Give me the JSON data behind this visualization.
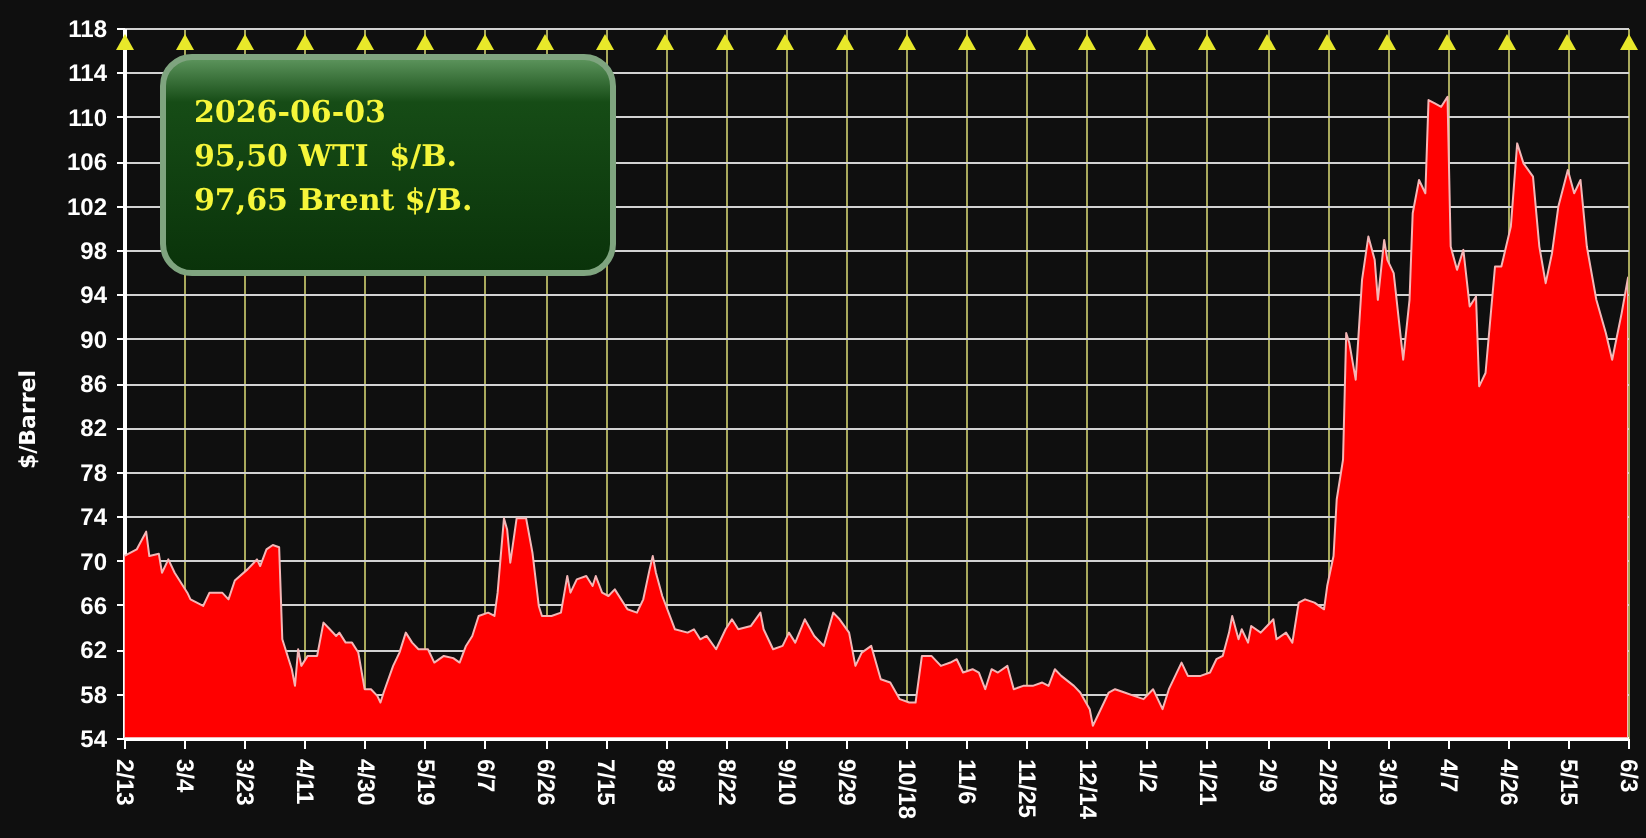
{
  "chart_data": {
    "type": "area",
    "ylabel": "$/Barrel",
    "annotations": [
      "2026-06-03",
      "95,50 WTI  $/B.",
      "97,65 Brent $/B."
    ],
    "x": [
      "2025-02-13",
      "2025-02-17",
      "2025-02-20",
      "2025-02-21",
      "2025-02-24",
      "2025-02-25",
      "2025-02-27",
      "2025-03-01",
      "2025-03-05",
      "2025-03-06",
      "2025-03-08",
      "2025-03-10",
      "2025-03-12",
      "2025-03-16",
      "2025-03-18",
      "2025-03-20",
      "2025-03-24",
      "2025-03-27",
      "2025-03-28",
      "2025-03-30",
      "2025-04-01",
      "2025-04-03",
      "2025-04-04",
      "2025-04-05",
      "2025-04-07",
      "2025-04-08",
      "2025-04-09",
      "2025-04-10",
      "2025-04-12",
      "2025-04-15",
      "2025-04-17",
      "2025-04-19",
      "2025-04-21",
      "2025-04-22",
      "2025-04-24",
      "2025-04-26",
      "2025-04-28",
      "2025-04-30",
      "2025-05-02",
      "2025-05-04",
      "2025-05-05",
      "2025-05-06",
      "2025-05-09",
      "2025-05-11",
      "2025-05-13",
      "2025-05-15",
      "2025-05-17",
      "2025-05-20",
      "2025-05-22",
      "2025-05-25",
      "2025-05-28",
      "2025-05-30",
      "2025-06-01",
      "2025-06-03",
      "2025-06-05",
      "2025-06-08",
      "2025-06-10",
      "2025-06-11",
      "2025-06-13",
      "2025-06-14",
      "2025-06-15",
      "2025-06-17",
      "2025-06-20",
      "2025-06-22",
      "2025-06-24",
      "2025-06-25",
      "2025-06-28",
      "2025-07-01",
      "2025-07-03",
      "2025-07-04",
      "2025-07-06",
      "2025-07-09",
      "2025-07-11",
      "2025-07-12",
      "2025-07-14",
      "2025-07-16",
      "2025-07-18",
      "2025-07-22",
      "2025-07-25",
      "2025-07-27",
      "2025-07-29",
      "2025-07-30",
      "2025-07-31",
      "2025-08-02",
      "2025-08-04",
      "2025-08-06",
      "2025-08-10",
      "2025-08-12",
      "2025-08-14",
      "2025-08-16",
      "2025-08-19",
      "2025-08-22",
      "2025-08-24",
      "2025-08-26",
      "2025-08-30",
      "2025-09-02",
      "2025-09-03",
      "2025-09-06",
      "2025-09-09",
      "2025-09-11",
      "2025-09-13",
      "2025-09-16",
      "2025-09-19",
      "2025-09-22",
      "2025-09-25",
      "2025-09-27",
      "2025-09-30",
      "2025-10-02",
      "2025-10-04",
      "2025-10-07",
      "2025-10-10",
      "2025-10-13",
      "2025-10-16",
      "2025-10-19",
      "2025-10-21",
      "2025-10-22",
      "2025-10-23",
      "2025-10-26",
      "2025-10-29",
      "2025-11-01",
      "2025-11-03",
      "2025-11-05",
      "2025-11-08",
      "2025-11-10",
      "2025-11-12",
      "2025-11-14",
      "2025-11-16",
      "2025-11-19",
      "2025-11-21",
      "2025-11-24",
      "2025-11-27",
      "2025-11-30",
      "2025-12-02",
      "2025-12-04",
      "2025-12-06",
      "2025-12-10",
      "2025-12-12",
      "2025-12-15",
      "2025-12-16",
      "2025-12-18",
      "2025-12-21",
      "2025-12-23",
      "2025-12-26",
      "2025-12-29",
      "2026-01-01",
      "2026-01-04",
      "2026-01-07",
      "2026-01-09",
      "2026-01-11",
      "2026-01-13",
      "2026-01-15",
      "2026-01-19",
      "2026-01-22",
      "2026-01-24",
      "2026-01-26",
      "2026-01-28",
      "2026-01-29",
      "2026-01-31",
      "2026-02-01",
      "2026-02-03",
      "2026-02-04",
      "2026-02-07",
      "2026-02-09",
      "2026-02-11",
      "2026-02-12",
      "2026-02-15",
      "2026-02-17",
      "2026-02-19",
      "2026-02-21",
      "2026-02-24",
      "2026-02-27",
      "2026-02-28",
      "2026-03-02",
      "2026-03-03",
      "2026-03-05",
      "2026-03-06",
      "2026-03-07",
      "2026-03-09",
      "2026-03-11",
      "2026-03-13",
      "2026-03-15",
      "2026-03-16",
      "2026-03-18",
      "2026-03-19",
      "2026-03-21",
      "2026-03-24",
      "2026-03-26",
      "2026-03-27",
      "2026-03-29",
      "2026-03-31",
      "2026-04-01",
      "2026-04-03",
      "2026-04-05",
      "2026-04-07",
      "2026-04-08",
      "2026-04-10",
      "2026-04-12",
      "2026-04-14",
      "2026-04-16",
      "2026-04-17",
      "2026-04-19",
      "2026-04-22",
      "2026-04-24",
      "2026-04-27",
      "2026-04-29",
      "2026-05-01",
      "2026-05-04",
      "2026-05-06",
      "2026-05-08",
      "2026-05-10",
      "2026-05-12",
      "2026-05-15",
      "2026-05-17",
      "2026-05-19",
      "2026-05-21",
      "2026-05-24",
      "2026-05-27",
      "2026-05-29",
      "2026-06-01",
      "2026-06-03"
    ],
    "series": [
      {
        "color": "#ff0000",
        "values": [
          70.4,
          71.0,
          72.6,
          70.4,
          70.6,
          68.9,
          70.1,
          68.9,
          67.1,
          66.5,
          66.2,
          65.9,
          67.1,
          67.1,
          66.5,
          68.2,
          69.2,
          70.1,
          69.5,
          71.0,
          71.4,
          71.2,
          62.9,
          62.0,
          60.2,
          58.7,
          62.0,
          60.5,
          61.4,
          61.4,
          64.4,
          63.8,
          63.2,
          63.5,
          62.6,
          62.6,
          61.7,
          58.4,
          58.4,
          57.8,
          57.2,
          58.1,
          60.5,
          61.7,
          63.5,
          62.6,
          62.0,
          62.0,
          60.8,
          61.4,
          61.2,
          60.8,
          62.3,
          63.2,
          65.0,
          65.3,
          65.0,
          67.1,
          73.8,
          72.8,
          69.8,
          73.8,
          73.8,
          70.7,
          65.9,
          65.0,
          65.0,
          65.3,
          68.6,
          67.1,
          68.3,
          68.6,
          67.7,
          68.6,
          67.1,
          66.8,
          67.4,
          65.6,
          65.3,
          66.5,
          69.2,
          70.4,
          68.9,
          66.8,
          65.3,
          63.8,
          63.5,
          63.8,
          62.9,
          63.2,
          62.0,
          63.8,
          64.7,
          63.8,
          64.1,
          65.3,
          63.8,
          62.0,
          62.3,
          63.5,
          62.6,
          64.7,
          63.2,
          62.3,
          65.3,
          64.7,
          63.5,
          60.5,
          61.7,
          62.3,
          59.3,
          59.0,
          57.5,
          57.2,
          57.2,
          59.3,
          61.4,
          61.4,
          60.5,
          60.8,
          61.1,
          59.9,
          60.2,
          59.9,
          58.4,
          60.2,
          59.9,
          60.5,
          58.4,
          58.7,
          58.7,
          59.0,
          58.7,
          60.2,
          59.6,
          58.7,
          58.1,
          56.6,
          55.1,
          56.3,
          58.1,
          58.4,
          58.1,
          57.8,
          57.5,
          58.4,
          56.6,
          58.4,
          59.6,
          60.8,
          59.6,
          59.6,
          59.9,
          61.1,
          61.4,
          63.5,
          65.0,
          62.9,
          63.8,
          62.6,
          64.1,
          63.5,
          64.1,
          64.7,
          62.9,
          63.5,
          62.6,
          66.2,
          66.5,
          66.2,
          65.6,
          67.7,
          70.4,
          75.5,
          79.1,
          90.5,
          89.6,
          86.3,
          95.3,
          99.2,
          97.1,
          93.5,
          98.9,
          97.1,
          95.9,
          88.1,
          93.5,
          101.3,
          104.3,
          103.1,
          111.5,
          111.2,
          110.9,
          111.8,
          98.3,
          96.2,
          98.0,
          92.9,
          93.8,
          85.7,
          86.9,
          96.5,
          96.5,
          100.1,
          107.6,
          105.8,
          104.6,
          98.3,
          95.0,
          97.7,
          101.9,
          105.2,
          103.1,
          104.3,
          98.3,
          93.5,
          90.5,
          88.1,
          92.3,
          95.5
        ]
      }
    ],
    "xlim": [
      "2025-02-13",
      "2026-06-03"
    ],
    "xticks": [
      {
        "value": "2025-02-13",
        "label": "2/13"
      },
      {
        "value": "2025-03-04",
        "label": "3/4"
      },
      {
        "value": "2025-03-23",
        "label": "3/23"
      },
      {
        "value": "2025-04-11",
        "label": "4/11"
      },
      {
        "value": "2025-04-30",
        "label": "4/30"
      },
      {
        "value": "2025-05-19",
        "label": "5/19"
      },
      {
        "value": "2025-06-07",
        "label": "6/7"
      },
      {
        "value": "2025-06-26",
        "label": "6/26"
      },
      {
        "value": "2025-07-15",
        "label": "7/15"
      },
      {
        "value": "2025-08-03",
        "label": "8/3"
      },
      {
        "value": "2025-08-22",
        "label": "8/22"
      },
      {
        "value": "2025-09-10",
        "label": "9/10"
      },
      {
        "value": "2025-09-29",
        "label": "9/29"
      },
      {
        "value": "2025-10-18",
        "label": "10/18"
      },
      {
        "value": "2025-11-06",
        "label": "11/6"
      },
      {
        "value": "2025-11-25",
        "label": "11/25"
      },
      {
        "value": "2025-12-14",
        "label": "12/14"
      },
      {
        "value": "2026-01-02",
        "label": "1/2"
      },
      {
        "value": "2026-01-21",
        "label": "1/21"
      },
      {
        "value": "2026-02-09",
        "label": "2/9"
      },
      {
        "value": "2026-02-28",
        "label": "2/28"
      },
      {
        "value": "2026-03-19",
        "label": "3/19"
      },
      {
        "value": "2026-04-07",
        "label": "4/7"
      },
      {
        "value": "2026-04-26",
        "label": "4/26"
      },
      {
        "value": "2026-05-15",
        "label": "5/15"
      },
      {
        "value": "2026-06-03",
        "label": "6/3"
      }
    ],
    "ylim": [
      54,
      118
    ],
    "yticks": [
      54,
      58,
      62,
      66,
      70,
      74,
      78,
      82,
      86,
      90,
      94,
      98,
      102,
      106,
      110,
      114,
      118
    ],
    "grid": true
  }
}
